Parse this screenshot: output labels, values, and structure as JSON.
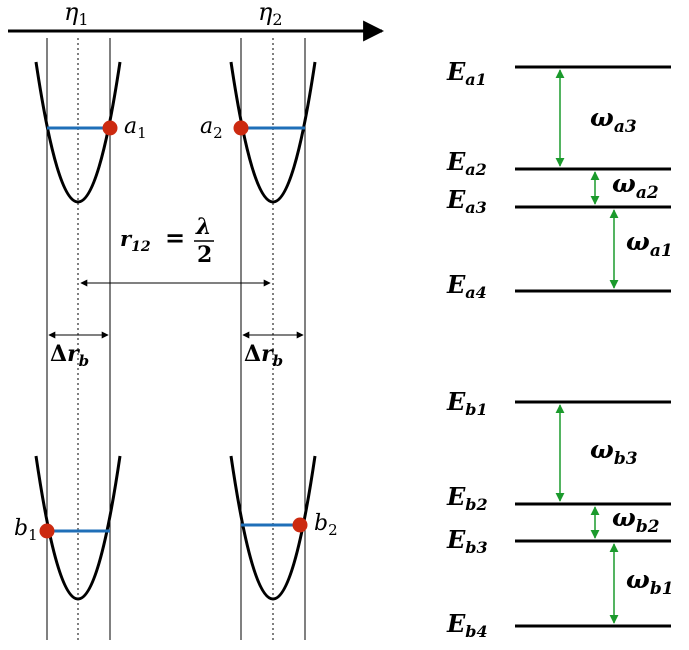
{
  "axis": {
    "eta1": "η",
    "eta1_sub": "1",
    "eta2": "η",
    "eta2_sub": "2"
  },
  "wells": {
    "a1": {
      "label": "a",
      "sub": "1"
    },
    "a2": {
      "label": "a",
      "sub": "2"
    },
    "b1": {
      "label": "b",
      "sub": "1"
    },
    "b2": {
      "label": "b",
      "sub": "2"
    }
  },
  "separation": {
    "lhs": "r",
    "lhs_sub": "12",
    "eq": "=",
    "numerator": "λ",
    "denominator": "2"
  },
  "width": {
    "delta": "Δ",
    "r": "r",
    "sub": "b"
  },
  "levels_a": {
    "E1": {
      "sym": "E",
      "sub": "a1"
    },
    "E2": {
      "sym": "E",
      "sub": "a2"
    },
    "E3": {
      "sym": "E",
      "sub": "a3"
    },
    "E4": {
      "sym": "E",
      "sub": "a4"
    },
    "w3": {
      "sym": "ω",
      "sub": "a3"
    },
    "w2": {
      "sym": "ω",
      "sub": "a2"
    },
    "w1": {
      "sym": "ω",
      "sub": "a1"
    }
  },
  "levels_b": {
    "E1": {
      "sym": "E",
      "sub": "b1"
    },
    "E2": {
      "sym": "E",
      "sub": "b2"
    },
    "E3": {
      "sym": "E",
      "sub": "b3"
    },
    "E4": {
      "sym": "E",
      "sub": "b4"
    },
    "w3": {
      "sym": "ω",
      "sub": "b3"
    },
    "w2": {
      "sym": "ω",
      "sub": "b2"
    },
    "w1": {
      "sym": "ω",
      "sub": "b1"
    }
  },
  "colors": {
    "line": "#000000",
    "level_blue": "#1f6fb8",
    "atom_red": "#cc2a10",
    "arrow_green": "#1b9a2c"
  }
}
